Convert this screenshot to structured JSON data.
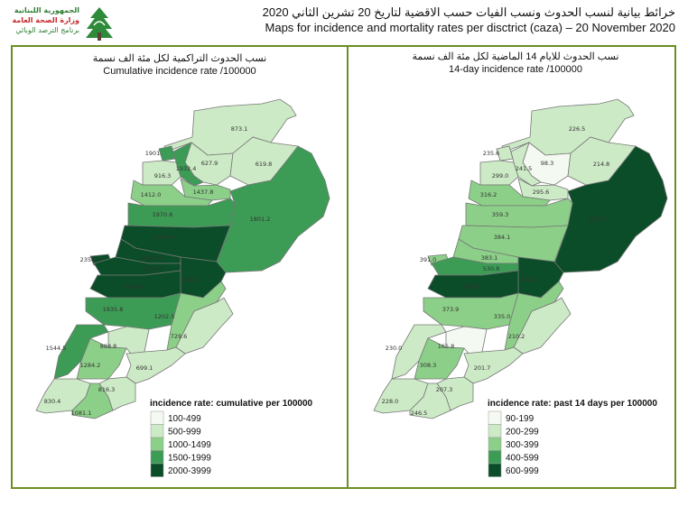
{
  "logo": {
    "line1": "الجمهورية اللبنانية",
    "line2": "وزارة الصحة العامة",
    "line3": "برنامج الترصد الوبائي"
  },
  "header": {
    "title_ar": "خرائط بيانية لنسب الحدوث ونسب الفيات حسب الاقضية لتاريخ 20 تشرين الثاني 2020",
    "title_en": "Maps for incidence and mortality rates per disctrict (caza) – 20 November 2020"
  },
  "maps": [
    {
      "title_ar": "نسب الحدوث التراكمية لكل مئة الف نسمة",
      "title_en": "Cumulative incidence rate /100000",
      "legend_title": "incidence rate: cumulative per 100000",
      "bins": [
        {
          "label": "100-499",
          "min": 100,
          "max": 499,
          "color": "#f4faf2"
        },
        {
          "label": "500-999",
          "min": 500,
          "max": 999,
          "color": "#cdeac6"
        },
        {
          "label": "1000-1499",
          "min": 1000,
          "max": 1499,
          "color": "#8ccf88"
        },
        {
          "label": "1500-1999",
          "min": 1500,
          "max": 1999,
          "color": "#3c9c55"
        },
        {
          "label": "2000-3999",
          "min": 2000,
          "max": 3999,
          "color": "#0b4d28"
        }
      ],
      "values": [
        "873.1",
        "627.9",
        "619.8",
        "1801.2",
        "1901.",
        "1932.4",
        "916.3",
        "1437.8",
        "1412.0",
        "1970.6",
        "2199.6",
        "2022.5",
        "2358.0",
        "2418.7",
        "2301.2",
        "2688.6",
        "1935.8",
        "1202.5",
        "729.6",
        "1544.5",
        "888.8",
        "1284.2",
        "699.1",
        "830.4",
        "1081.1",
        "816.3"
      ]
    },
    {
      "title_ar": "نسب الحدوث للايام 14 الماضية لكل مئة الف نسمة",
      "title_en": "14-day incidence rate /100000",
      "legend_title": "incidence rate: past 14 days per 100000",
      "bins": [
        {
          "label": "90-199",
          "min": 90,
          "max": 199,
          "color": "#f4faf2"
        },
        {
          "label": "200-299",
          "min": 200,
          "max": 299,
          "color": "#cdeac6"
        },
        {
          "label": "300-399",
          "min": 300,
          "max": 399,
          "color": "#8ccf88"
        },
        {
          "label": "400-599",
          "min": 400,
          "max": 599,
          "color": "#3c9c55"
        },
        {
          "label": "600-999",
          "min": 600,
          "max": 999,
          "color": "#0b4d28"
        }
      ],
      "values": [
        "226.5",
        "98.3",
        "214.8",
        "803.6",
        "235.6",
        "241.5",
        "299.0",
        "295.6",
        "316.2",
        "359.3",
        "384.1",
        "383.1",
        "391.0",
        "530.8",
        "632.5",
        "867.8",
        "373.9",
        "335.0",
        "210.2",
        "230.0",
        "165.8",
        "308.3",
        "201.7",
        "228.0",
        "246.5",
        "207.3"
      ]
    }
  ]
}
